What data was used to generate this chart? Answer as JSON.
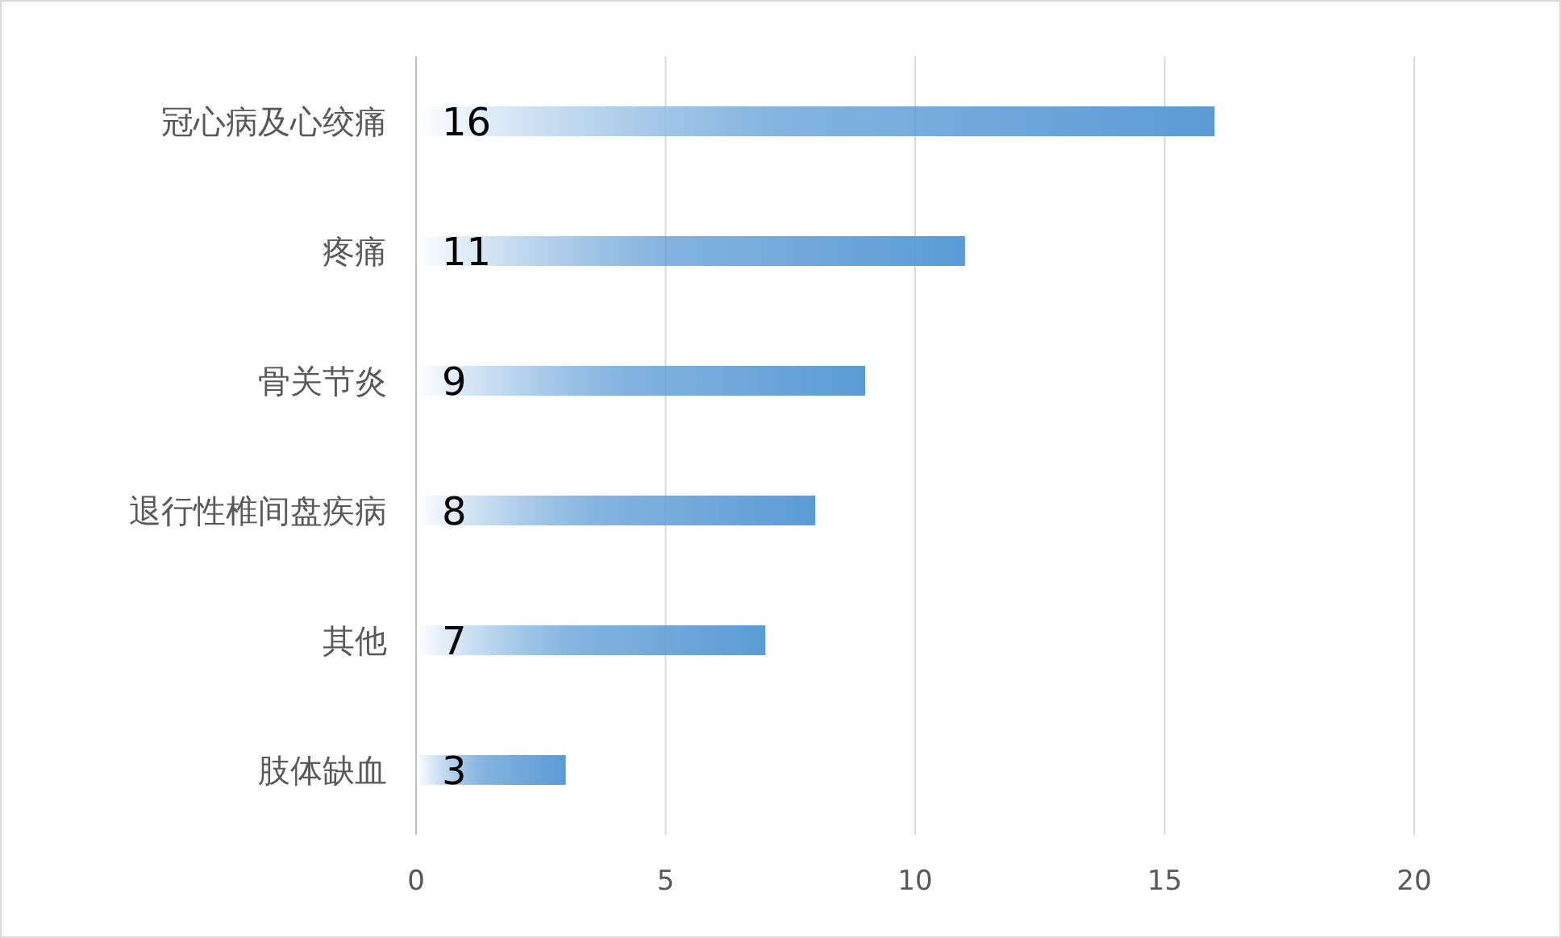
{
  "chart_data": {
    "type": "bar",
    "orientation": "horizontal",
    "categories": [
      "冠心病及心绞痛",
      "疼痛",
      "骨关节炎",
      "退行性椎间盘疾病",
      "其他",
      "肢体缺血"
    ],
    "values": [
      16,
      11,
      9,
      8,
      7,
      3
    ],
    "color": "#5b9bd5",
    "xlim": [
      0,
      20
    ],
    "xticks": [
      0,
      5,
      10,
      15,
      20
    ],
    "grid": "x",
    "data_labels": true
  }
}
